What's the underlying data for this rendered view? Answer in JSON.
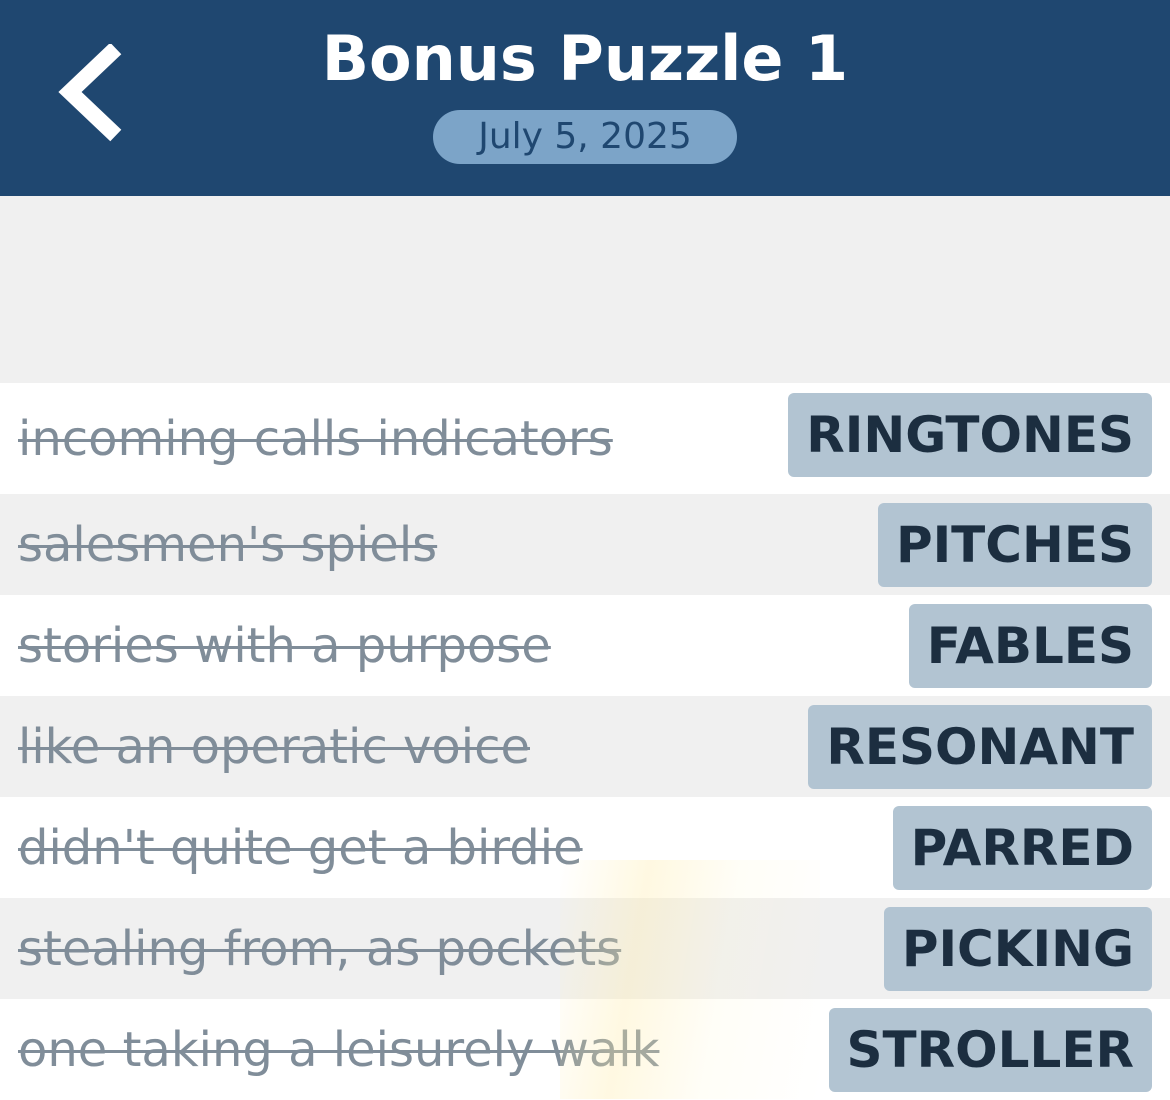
{
  "header": {
    "title": "Bonus Puzzle 1",
    "date": "July 5, 2025",
    "back_icon": "chevron-left-icon"
  },
  "colors": {
    "header_bg": "#1f4770",
    "date_pill": "#7ca4c8",
    "answer_badge": "#b2c4d2",
    "answer_text": "#1c2e40",
    "clue_text": "#808d99"
  },
  "clues": [
    {
      "clue": "incoming calls indicators",
      "answer": "RINGTONES",
      "solved": true
    },
    {
      "clue": "salesmen's spiels",
      "answer": "PITCHES",
      "solved": true
    },
    {
      "clue": "stories with a purpose",
      "answer": "FABLES",
      "solved": true
    },
    {
      "clue": "like an operatic voice",
      "answer": "RESONANT",
      "solved": true
    },
    {
      "clue": "didn't quite get a birdie",
      "answer": "PARRED",
      "solved": true
    },
    {
      "clue": "stealing from, as pockets",
      "answer": "PICKING",
      "solved": true
    },
    {
      "clue": "one taking a leisurely walk",
      "answer": "STROLLER",
      "solved": true
    }
  ]
}
